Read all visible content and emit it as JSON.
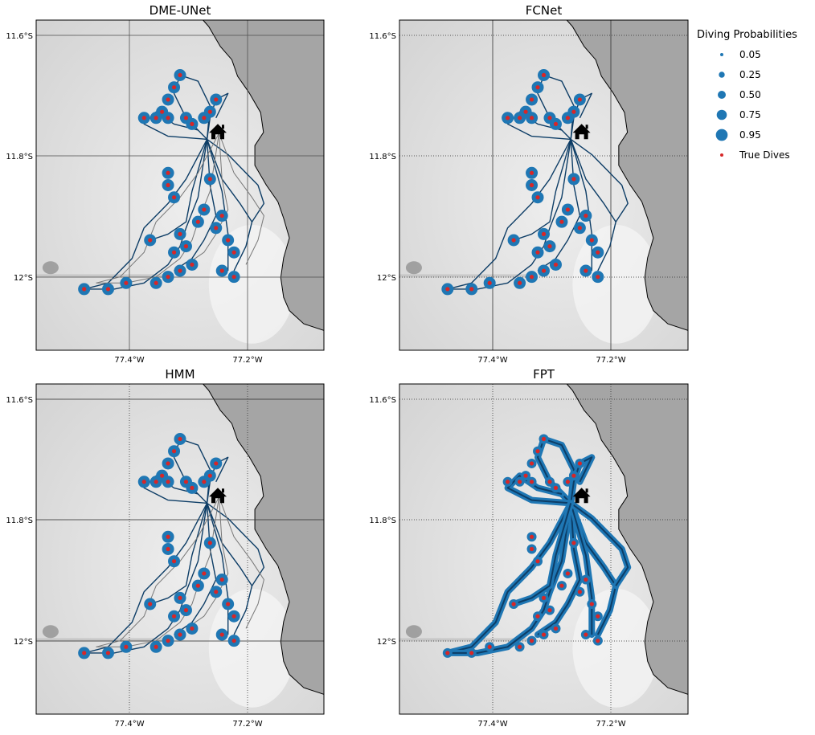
{
  "chart_data": {
    "type": "scatter",
    "grid": true,
    "coastline": true,
    "x_ticks": [
      "77.4°W",
      "77.2°W"
    ],
    "y_ticks": [
      "11.6°S",
      "11.8°S",
      "12°S"
    ],
    "xlim": [
      -77.55,
      -77.07
    ],
    "ylim": [
      -12.12,
      -11.58
    ],
    "panels": [
      {
        "title": "DME-UNet",
        "grid_style": "solid",
        "tick_side": "x-bottom,y-left"
      },
      {
        "title": "FCNet",
        "grid_style": "dotted-h",
        "tick_side": "x-bottom,y-left"
      },
      {
        "title": "HMM",
        "grid_style": "dotted-v",
        "tick_side": "x-bottom,y-left"
      },
      {
        "title": "FPT",
        "grid_style": "dotted",
        "tick_side": "x-bottom,y-left"
      }
    ],
    "legend": {
      "title": "Diving Probabilities",
      "placement": "right",
      "entries": [
        {
          "label": "0.05",
          "value": 0.05,
          "color": "#1f77b4"
        },
        {
          "label": "0.25",
          "value": 0.25,
          "color": "#1f77b4"
        },
        {
          "label": "0.50",
          "value": 0.5,
          "color": "#1f77b4"
        },
        {
          "label": "0.75",
          "value": 0.75,
          "color": "#1f77b4"
        },
        {
          "label": "0.95",
          "value": 0.95,
          "color": "#1f77b4"
        },
        {
          "label": "True Dives",
          "value": null,
          "color": "#d62728"
        }
      ]
    },
    "colors": {
      "prob": "#1f77b4",
      "true_dive": "#d62728",
      "track": "#0d3d66",
      "land": "#a5a5a5"
    },
    "home_icon": "house-icon",
    "colony": {
      "lon": -77.265,
      "lat": -11.775
    },
    "tracks": [
      [
        [
          -77.265,
          -11.775
        ],
        [
          -77.3,
          -11.74
        ],
        [
          -77.32,
          -11.7
        ],
        [
          -77.31,
          -11.67
        ],
        [
          -77.28,
          -11.68
        ],
        [
          -77.26,
          -11.72
        ],
        [
          -77.265,
          -11.775
        ]
      ],
      [
        [
          -77.265,
          -11.775
        ],
        [
          -77.33,
          -11.77
        ],
        [
          -77.37,
          -11.75
        ],
        [
          -77.35,
          -11.73
        ],
        [
          -77.32,
          -11.75
        ],
        [
          -77.28,
          -11.76
        ]
      ],
      [
        [
          -77.265,
          -11.775
        ],
        [
          -77.3,
          -11.84
        ],
        [
          -77.33,
          -11.88
        ],
        [
          -77.37,
          -11.92
        ],
        [
          -77.39,
          -11.97
        ],
        [
          -77.43,
          -12.01
        ],
        [
          -77.47,
          -12.02
        ]
      ],
      [
        [
          -77.265,
          -11.775
        ],
        [
          -77.28,
          -11.87
        ],
        [
          -77.3,
          -11.92
        ],
        [
          -77.31,
          -11.95
        ],
        [
          -77.33,
          -11.98
        ],
        [
          -77.37,
          -12.01
        ],
        [
          -77.42,
          -12.02
        ],
        [
          -77.47,
          -12.02
        ]
      ],
      [
        [
          -77.265,
          -11.775
        ],
        [
          -77.26,
          -11.85
        ],
        [
          -77.25,
          -11.9
        ],
        [
          -77.27,
          -11.94
        ],
        [
          -77.29,
          -11.97
        ],
        [
          -77.32,
          -11.99
        ]
      ],
      [
        [
          -77.265,
          -11.775
        ],
        [
          -77.24,
          -11.84
        ],
        [
          -77.21,
          -11.88
        ],
        [
          -77.19,
          -11.91
        ],
        [
          -77.2,
          -11.95
        ],
        [
          -77.22,
          -11.99
        ]
      ],
      [
        [
          -77.265,
          -11.775
        ],
        [
          -77.24,
          -11.86
        ],
        [
          -77.23,
          -11.93
        ],
        [
          -77.23,
          -11.99
        ]
      ],
      [
        [
          -77.265,
          -11.775
        ],
        [
          -77.23,
          -11.8
        ],
        [
          -77.2,
          -11.83
        ],
        [
          -77.18,
          -11.85
        ],
        [
          -77.17,
          -11.88
        ],
        [
          -77.19,
          -11.91
        ]
      ],
      [
        [
          -77.265,
          -11.775
        ],
        [
          -77.26,
          -11.74
        ],
        [
          -77.25,
          -11.71
        ],
        [
          -77.23,
          -11.7
        ],
        [
          -77.25,
          -11.74
        ]
      ],
      [
        [
          -77.265,
          -11.775
        ],
        [
          -77.29,
          -11.86
        ],
        [
          -77.3,
          -11.91
        ],
        [
          -77.33,
          -11.93
        ],
        [
          -77.36,
          -11.94
        ]
      ]
    ],
    "dive_segments": [
      [
        [
          -77.31,
          -11.67
        ],
        [
          -77.32,
          -11.69
        ],
        [
          -77.33,
          -11.71
        ],
        [
          -77.34,
          -11.73
        ]
      ],
      [
        [
          -77.37,
          -11.74
        ],
        [
          -77.35,
          -11.74
        ],
        [
          -77.33,
          -11.74
        ]
      ],
      [
        [
          -77.3,
          -11.74
        ],
        [
          -77.29,
          -11.75
        ],
        [
          -77.27,
          -11.74
        ],
        [
          -77.26,
          -11.73
        ],
        [
          -77.25,
          -11.71
        ]
      ],
      [
        [
          -77.33,
          -11.83
        ],
        [
          -77.33,
          -11.85
        ],
        [
          -77.32,
          -11.87
        ]
      ],
      [
        [
          -77.26,
          -11.84
        ]
      ],
      [
        [
          -77.27,
          -11.89
        ],
        [
          -77.28,
          -11.91
        ]
      ],
      [
        [
          -77.24,
          -11.9
        ],
        [
          -77.25,
          -11.92
        ]
      ],
      [
        [
          -77.31,
          -11.93
        ],
        [
          -77.3,
          -11.95
        ],
        [
          -77.32,
          -11.96
        ]
      ],
      [
        [
          -77.36,
          -11.94
        ]
      ],
      [
        [
          -77.23,
          -11.94
        ],
        [
          -77.22,
          -11.96
        ]
      ],
      [
        [
          -77.22,
          -12.0
        ],
        [
          -77.24,
          -11.99
        ]
      ],
      [
        [
          -77.29,
          -11.98
        ],
        [
          -77.31,
          -11.99
        ],
        [
          -77.33,
          -12.0
        ],
        [
          -77.35,
          -12.01
        ],
        [
          -77.4,
          -12.01
        ],
        [
          -77.43,
          -12.02
        ],
        [
          -77.47,
          -12.02
        ]
      ]
    ]
  }
}
